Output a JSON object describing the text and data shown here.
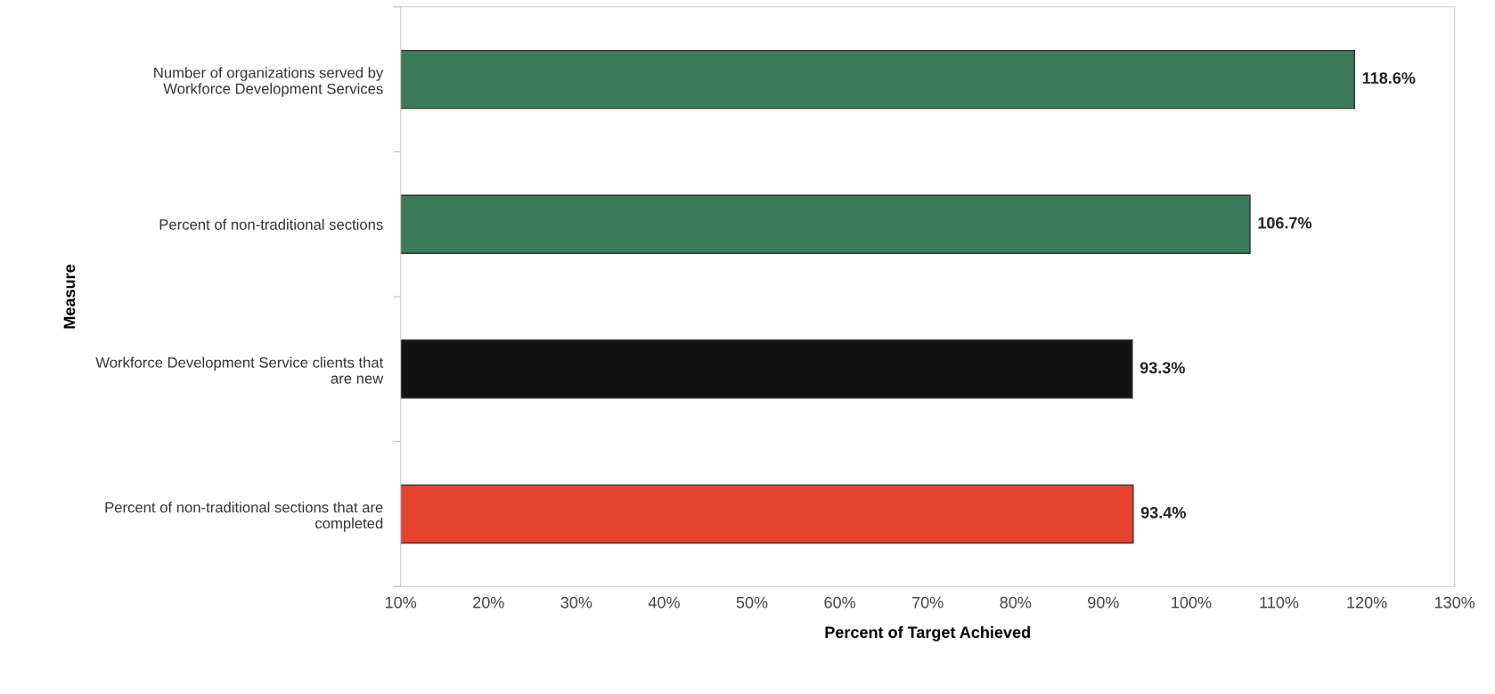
{
  "chart_data": {
    "type": "bar",
    "orientation": "horizontal",
    "xlabel": "Percent of Target Achieved",
    "ylabel": "Measure",
    "categories": [
      "Number of organizations served by\nWorkforce Development Services",
      "Percent of non-traditional sections",
      "Workforce Development Service clients that\nare new",
      "Percent of non-traditional sections that are\ncompleted"
    ],
    "values": [
      118.6,
      106.7,
      93.3,
      93.4
    ],
    "colors": [
      "#3b7a58",
      "#3b7a58",
      "#121212",
      "#e5432e"
    ],
    "value_labels": [
      "118.6%",
      "106.7%",
      "93.3%",
      "93.4%"
    ],
    "xlim": [
      10,
      130
    ],
    "xticks": [
      {
        "value": 10,
        "label": "10%"
      },
      {
        "value": 20,
        "label": "20%"
      },
      {
        "value": 30,
        "label": "30%"
      },
      {
        "value": 40,
        "label": "40%"
      },
      {
        "value": 50,
        "label": "50%"
      },
      {
        "value": 60,
        "label": "60%"
      },
      {
        "value": 70,
        "label": "70%"
      },
      {
        "value": 80,
        "label": "80%"
      },
      {
        "value": 90,
        "label": "90%"
      },
      {
        "value": 100,
        "label": "100%"
      },
      {
        "value": 110,
        "label": "110%"
      },
      {
        "value": 120,
        "label": "120%"
      },
      {
        "value": 130,
        "label": "130%"
      }
    ],
    "grid": false,
    "legend": false
  }
}
